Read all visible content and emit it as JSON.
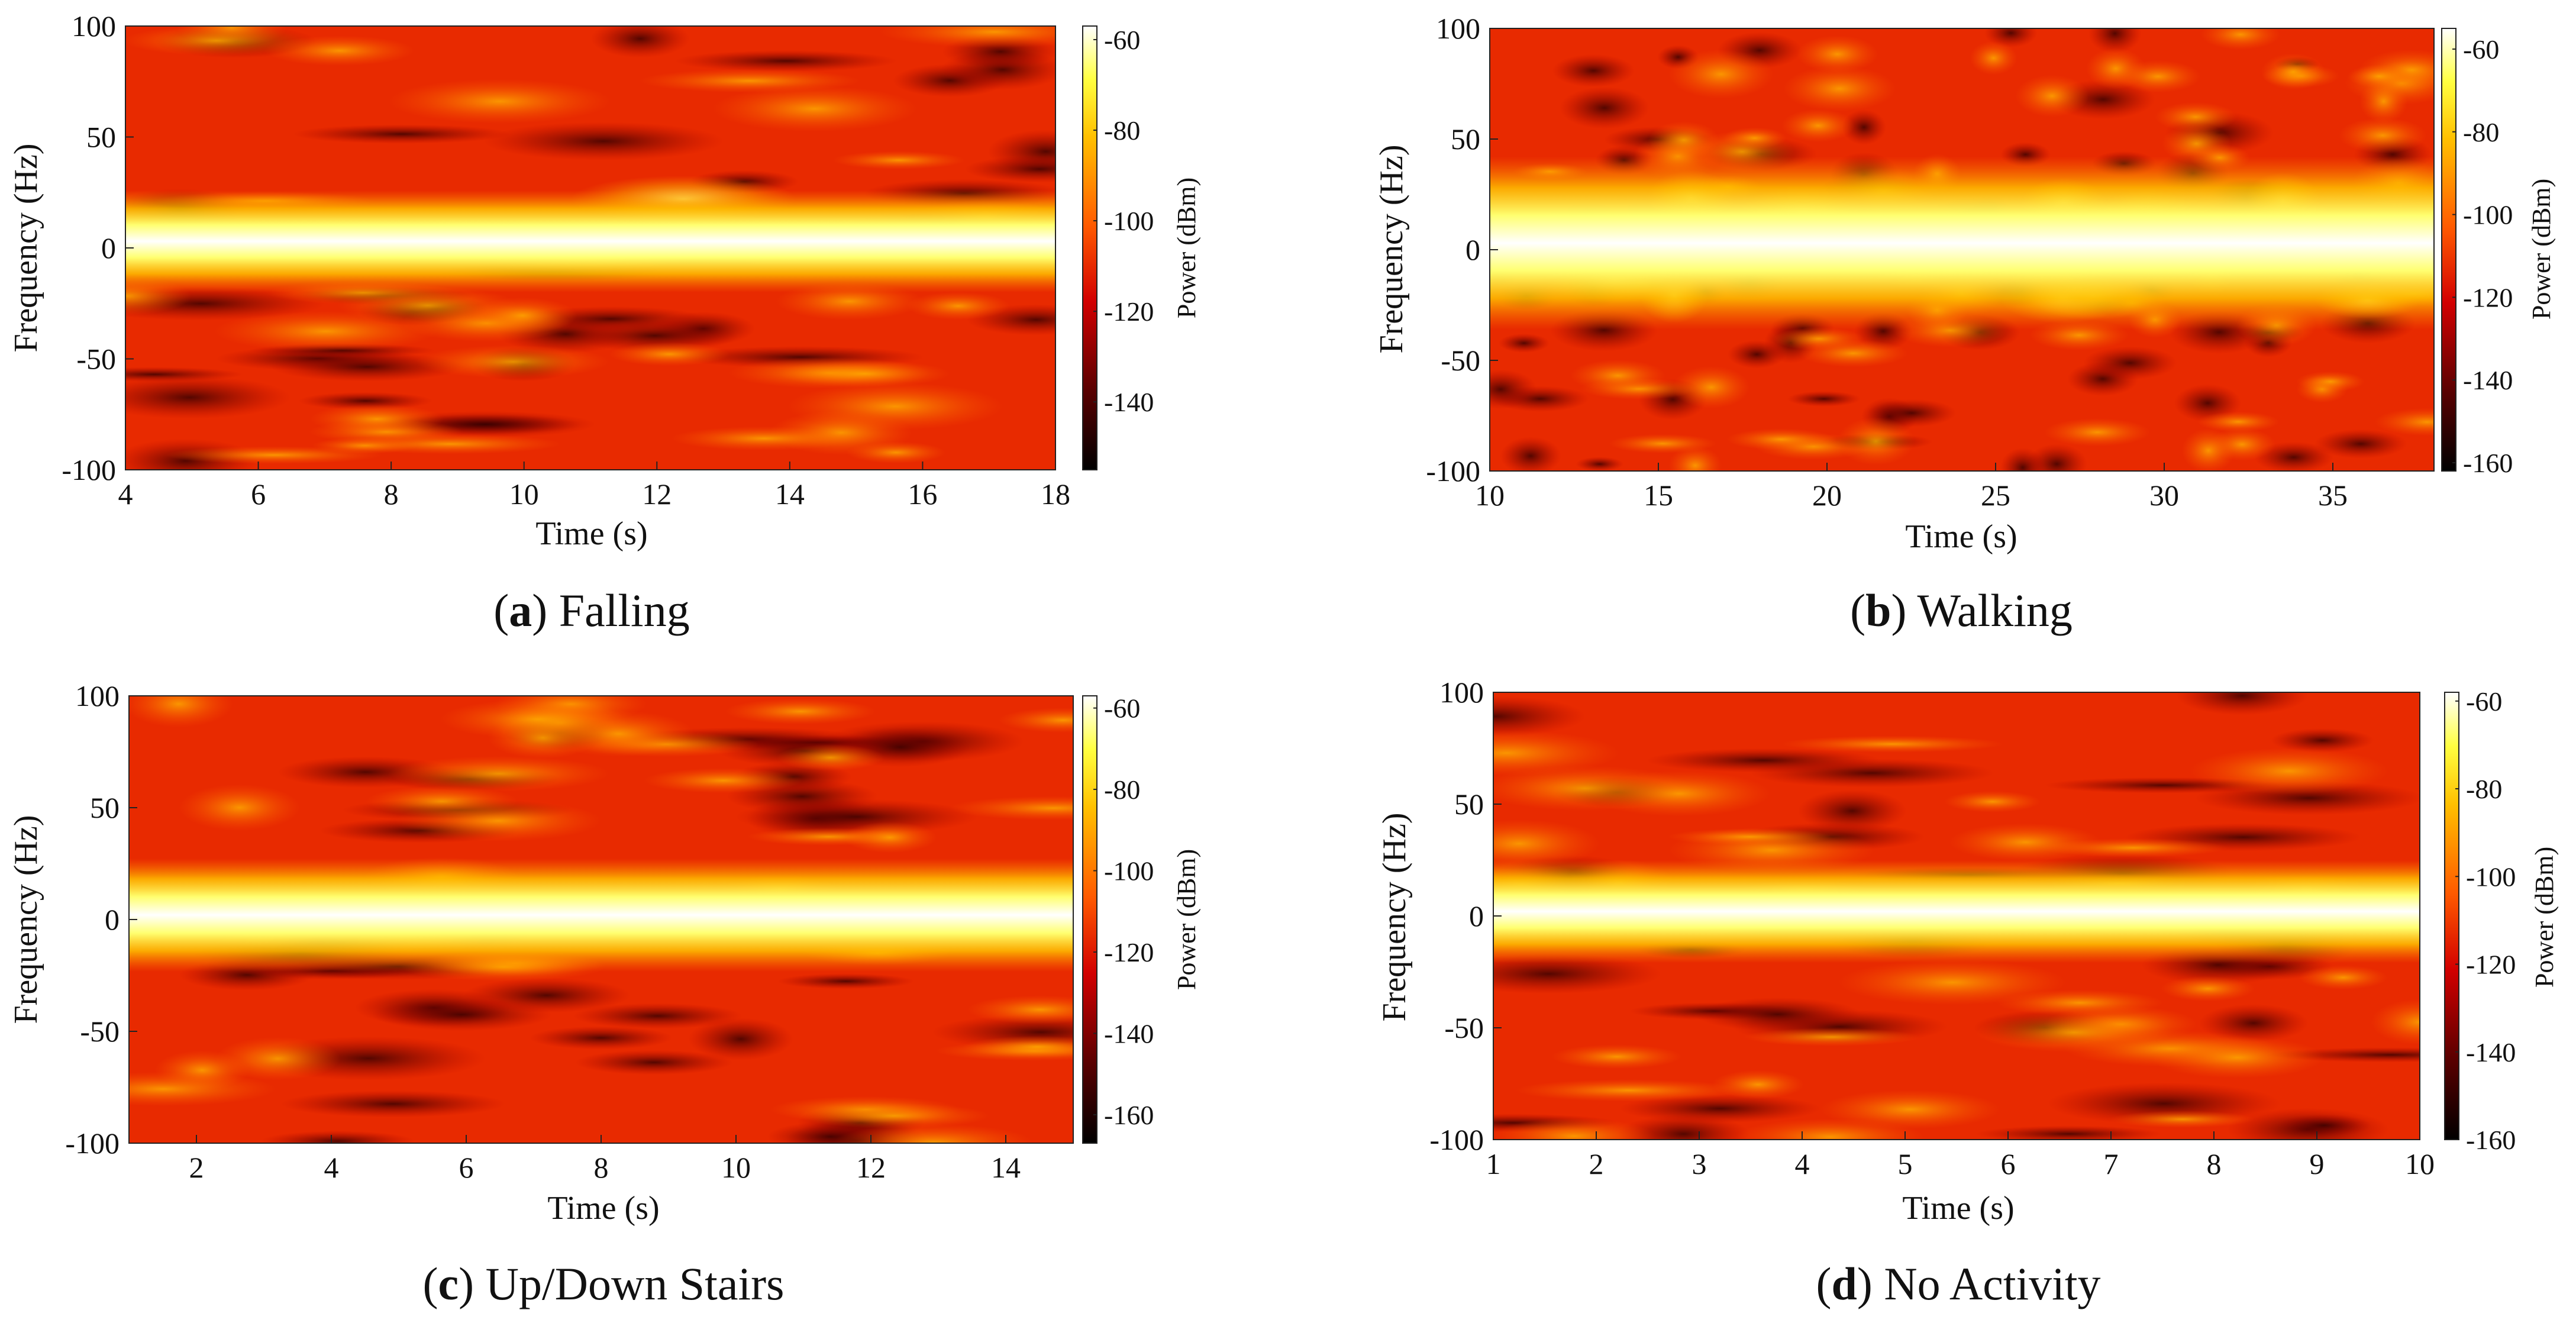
{
  "figure": {
    "axis_common": {
      "xlabel": "Time (s)",
      "ylabel": "Frequency (Hz)",
      "colorbar_label": "Power (dBm)"
    }
  },
  "chart_data": [
    {
      "type": "heatmap",
      "panel_letter": "a",
      "caption": "Falling",
      "xlabel": "Time (s)",
      "ylabel": "Frequency (Hz)",
      "xlim": [
        4,
        18
      ],
      "ylim": [
        -100,
        100
      ],
      "xticks": [
        4,
        6,
        8,
        10,
        12,
        14,
        16,
        18
      ],
      "yticks": [
        100,
        50,
        0,
        -50,
        -100
      ],
      "colorbar_label": "Power (dBm)",
      "clim": [
        -155,
        -57
      ],
      "colorbar_ticks": [
        -60,
        -80,
        -100,
        -120,
        -140
      ],
      "band_center_hz": 3,
      "band_halfwidth_hz": 10
    },
    {
      "type": "heatmap",
      "panel_letter": "b",
      "caption": "Walking",
      "xlabel": "Time (s)",
      "ylabel": "Frequency (Hz)",
      "xlim": [
        10,
        38
      ],
      "ylim": [
        -100,
        100
      ],
      "xticks": [
        10,
        15,
        20,
        25,
        30,
        35
      ],
      "yticks": [
        100,
        50,
        0,
        -50,
        -100
      ],
      "colorbar_label": "Power (dBm)",
      "clim": [
        -162,
        -55
      ],
      "colorbar_ticks": [
        -60,
        -80,
        -100,
        -120,
        -140,
        -160
      ],
      "band_center_hz": 3,
      "band_halfwidth_hz": 17
    },
    {
      "type": "heatmap",
      "panel_letter": "c",
      "caption": "Up/Down Stairs",
      "xlabel": "Time (s)",
      "ylabel": "Frequency (Hz)",
      "xlim": [
        1,
        15
      ],
      "ylim": [
        -100,
        100
      ],
      "xticks": [
        2,
        4,
        6,
        8,
        10,
        12,
        14
      ],
      "yticks": [
        100,
        50,
        0,
        -50,
        -100
      ],
      "colorbar_label": "Power (dBm)",
      "clim": [
        -167,
        -57
      ],
      "colorbar_ticks": [
        -60,
        -80,
        -100,
        -120,
        -140,
        -160
      ],
      "band_center_hz": 2,
      "band_halfwidth_hz": 11
    },
    {
      "type": "heatmap",
      "panel_letter": "d",
      "caption": "No Activity",
      "xlabel": "Time (s)",
      "ylabel": "Frequency (Hz)",
      "xlim": [
        1,
        10
      ],
      "ylim": [
        -100,
        100
      ],
      "xticks": [
        1,
        2,
        3,
        4,
        5,
        6,
        7,
        8,
        9,
        10
      ],
      "yticks": [
        100,
        50,
        0,
        -50,
        -100
      ],
      "colorbar_label": "Power (dBm)",
      "clim": [
        -160,
        -58
      ],
      "colorbar_ticks": [
        -60,
        -80,
        -100,
        -120,
        -140,
        -160
      ],
      "band_center_hz": 2,
      "band_halfwidth_hz": 10
    }
  ]
}
